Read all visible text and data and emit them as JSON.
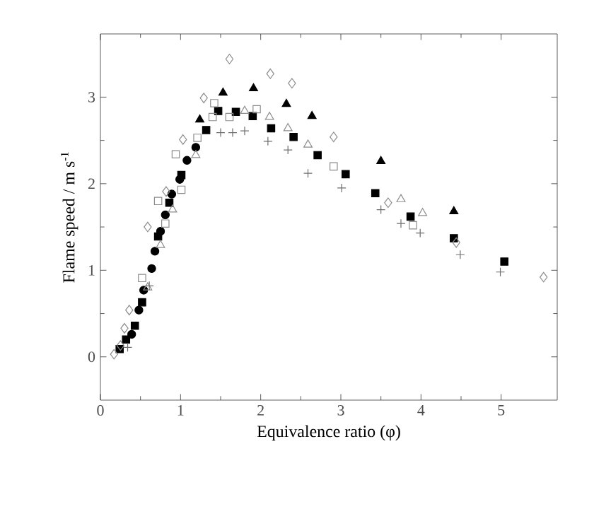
{
  "chart_data": {
    "type": "scatter",
    "xlabel": "Equivalence ratio (φ)",
    "ylabel": "Flame speed / m s$^{-1}$",
    "xlim": [
      0,
      5.7
    ],
    "ylim": [
      -0.5,
      3.73
    ],
    "xticks": [
      0,
      1,
      2,
      3,
      4,
      5
    ],
    "yticks": [
      0,
      1,
      2,
      3
    ],
    "series": [
      {
        "marker": "square",
        "color": "#000000",
        "x": [
          0.24,
          0.32,
          0.43,
          0.52,
          0.72,
          0.86,
          1.01,
          1.32,
          1.47,
          1.69,
          1.9,
          2.13,
          2.41,
          2.71,
          3.06,
          3.43,
          3.87,
          4.41,
          5.04
        ],
        "values": [
          0.09,
          0.2,
          0.36,
          0.63,
          1.39,
          1.78,
          2.1,
          2.62,
          2.84,
          2.83,
          2.78,
          2.64,
          2.54,
          2.33,
          2.11,
          1.89,
          1.62,
          1.37,
          1.1
        ]
      },
      {
        "marker": "circle",
        "color": "#000000",
        "x": [
          0.39,
          0.48,
          0.54,
          0.64,
          0.68,
          0.75,
          0.81,
          0.89,
          0.99,
          1.08,
          1.19
        ],
        "values": [
          0.26,
          0.54,
          0.77,
          1.02,
          1.22,
          1.45,
          1.64,
          1.88,
          2.05,
          2.27,
          2.42
        ]
      },
      {
        "marker": "triangle",
        "color": "#000000",
        "x": [
          1.24,
          1.53,
          1.91,
          2.32,
          2.64,
          3.5,
          4.41
        ],
        "values": [
          2.74,
          3.05,
          3.1,
          2.92,
          2.78,
          2.26,
          1.68
        ]
      },
      {
        "marker": "triangle",
        "color": "#8c8c8c",
        "x": [
          0.59,
          0.75,
          0.9,
          1.19,
          1.8,
          2.11,
          2.34,
          2.59,
          3.75,
          4.02
        ],
        "values": [
          0.8,
          1.29,
          1.7,
          2.33,
          2.84,
          2.77,
          2.64,
          2.45,
          1.82,
          1.66
        ]
      },
      {
        "marker": "diamond",
        "color": "#8c8c8c",
        "x": [
          0.17,
          0.25,
          0.3,
          0.36,
          0.59,
          0.82,
          1.03,
          1.29,
          1.61,
          2.12,
          2.39,
          2.91,
          3.59,
          4.44,
          5.53
        ],
        "values": [
          0.03,
          0.13,
          0.33,
          0.54,
          1.5,
          1.91,
          2.51,
          2.99,
          3.44,
          3.27,
          3.16,
          2.54,
          1.78,
          1.32,
          0.92
        ]
      },
      {
        "marker": "square",
        "color": "#8c8c8c",
        "x": [
          0.52,
          0.72,
          0.81,
          0.94,
          1.01,
          1.21,
          1.4,
          1.42,
          1.61,
          1.95,
          2.91,
          3.9
        ],
        "values": [
          0.91,
          1.8,
          1.54,
          2.34,
          1.93,
          2.53,
          2.77,
          2.93,
          2.77,
          2.86,
          2.2,
          1.52
        ]
      },
      {
        "marker": "cross",
        "color": "#6e6e6e",
        "x": [
          0.34,
          0.61,
          1.5,
          1.65,
          1.8,
          2.09,
          2.34,
          2.59,
          3.01,
          3.5,
          3.75,
          3.99,
          4.49,
          4.99
        ],
        "values": [
          0.11,
          0.82,
          2.59,
          2.59,
          2.61,
          2.49,
          2.39,
          2.12,
          1.95,
          1.7,
          1.54,
          1.43,
          1.18,
          0.98
        ]
      }
    ]
  }
}
